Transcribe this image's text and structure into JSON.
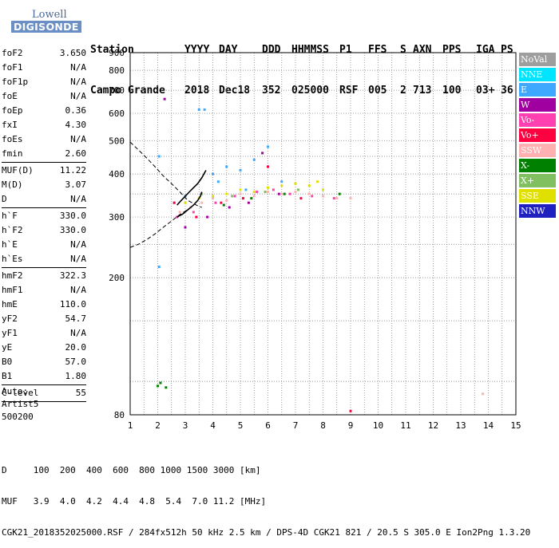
{
  "logo": {
    "line1": "Lowell",
    "line2": "DIGISONDE"
  },
  "header": {
    "labels": [
      "Station",
      "YYYY",
      "DAY",
      "DDD",
      "HHMMSS",
      "P1",
      "FFS",
      "S",
      "AXN",
      "PPS",
      "IGA",
      "PS"
    ],
    "values": [
      "Campo Grande",
      "2018",
      "Dec18",
      "352",
      "025000",
      "RSF",
      "005",
      "2",
      "713",
      "100",
      "03+",
      "36"
    ]
  },
  "params": [
    {
      "k": "foF2",
      "v": "3.650"
    },
    {
      "k": "foF1",
      "v": "N/A"
    },
    {
      "k": "foF1p",
      "v": "N/A"
    },
    {
      "k": "foE",
      "v": "N/A"
    },
    {
      "k": "foEp",
      "v": "0.36"
    },
    {
      "k": "fxI",
      "v": "4.30"
    },
    {
      "k": "foEs",
      "v": "N/A"
    },
    {
      "k": "fmin",
      "v": "2.60"
    },
    {
      "sep": true
    },
    {
      "k": "MUF(D)",
      "v": "11.22"
    },
    {
      "k": "M(D)",
      "v": "3.07"
    },
    {
      "k": "D",
      "v": "N/A"
    },
    {
      "sep": true
    },
    {
      "k": "h`F",
      "v": "330.0"
    },
    {
      "k": "h`F2",
      "v": "330.0"
    },
    {
      "k": "h`E",
      "v": "N/A"
    },
    {
      "k": "h`Es",
      "v": "N/A"
    },
    {
      "sep": true
    },
    {
      "k": "hmF2",
      "v": "322.3"
    },
    {
      "k": "hmF1",
      "v": "N/A"
    },
    {
      "k": "hmE",
      "v": "110.0"
    },
    {
      "k": "yF2",
      "v": "54.7"
    },
    {
      "k": "yF1",
      "v": "N/A"
    },
    {
      "k": "yE",
      "v": "20.0"
    },
    {
      "k": "B0",
      "v": "57.0"
    },
    {
      "k": "B1",
      "v": "1.80"
    },
    {
      "sep": true
    },
    {
      "k": "C-level",
      "v": "55"
    },
    {
      "sep": true
    }
  ],
  "auto": {
    "line1": "Auto:",
    "line2": "Artist5",
    "line3": "500200"
  },
  "legend": [
    {
      "label": "NoVal",
      "bg": "#9e9e9e",
      "fg": "#ffffff"
    },
    {
      "label": "NNE",
      "bg": "#00e5ff",
      "fg": "#ffffff"
    },
    {
      "label": "E",
      "bg": "#3ea8ff",
      "fg": "#ffffff"
    },
    {
      "label": "W",
      "bg": "#a000a0",
      "fg": "#ffffff"
    },
    {
      "label": "Vo-",
      "bg": "#ff40b0",
      "fg": "#ffffff"
    },
    {
      "label": "Vo+",
      "bg": "#ff0040",
      "fg": "#ffffff"
    },
    {
      "label": "SSW",
      "bg": "#ffb0b0",
      "fg": "#ffffff"
    },
    {
      "label": "X-",
      "bg": "#008000",
      "fg": "#ffffff"
    },
    {
      "label": "X+",
      "bg": "#80c060",
      "fg": "#ffffff"
    },
    {
      "label": "SSE",
      "bg": "#e0e000",
      "fg": "#ffffff"
    },
    {
      "label": "NNW",
      "bg": "#2020c0",
      "fg": "#ffffff"
    }
  ],
  "chart_data": {
    "type": "scatter",
    "title": "",
    "xlabel": "",
    "ylabel": "",
    "xlim": [
      1,
      15
    ],
    "ylim": [
      80,
      900
    ],
    "x_ticks": [
      1,
      2,
      3,
      4,
      5,
      6,
      7,
      8,
      9,
      10,
      11,
      12,
      13,
      14,
      15
    ],
    "y_ticks": [
      80,
      200,
      300,
      400,
      500,
      600,
      700,
      800,
      900
    ],
    "grid": true,
    "y_scale": "log",
    "legend_position": "right",
    "series": [
      {
        "color": "#3ea8ff",
        "points": [
          [
            2.05,
            450
          ],
          [
            2.05,
            215
          ],
          [
            3.5,
            615
          ],
          [
            3.7,
            615
          ],
          [
            4.0,
            400
          ],
          [
            4.5,
            420
          ],
          [
            5.0,
            410
          ],
          [
            5.5,
            440
          ],
          [
            6.0,
            480
          ],
          [
            2.6,
            330
          ],
          [
            3.0,
            345
          ],
          [
            4.2,
            380
          ],
          [
            5.2,
            360
          ],
          [
            6.5,
            380
          ]
        ]
      },
      {
        "color": "#ffb0b0",
        "points": [
          [
            2.8,
            310
          ],
          [
            3.2,
            320
          ],
          [
            3.6,
            330
          ],
          [
            4.0,
            340
          ],
          [
            4.5,
            335
          ],
          [
            5.0,
            350
          ],
          [
            5.5,
            345
          ],
          [
            6.0,
            355
          ],
          [
            6.5,
            350
          ],
          [
            7.0,
            355
          ],
          [
            7.5,
            350
          ],
          [
            8.0,
            345
          ],
          [
            8.5,
            340
          ],
          [
            9.0,
            340
          ],
          [
            13.8,
            92
          ]
        ]
      },
      {
        "color": "#e0e000",
        "points": [
          [
            3.0,
            330
          ],
          [
            3.5,
            340
          ],
          [
            4.0,
            345
          ],
          [
            4.5,
            350
          ],
          [
            5.0,
            360
          ],
          [
            5.5,
            355
          ],
          [
            6.0,
            365
          ],
          [
            6.5,
            370
          ],
          [
            7.0,
            375
          ],
          [
            7.5,
            370
          ],
          [
            7.8,
            380
          ],
          [
            8.0,
            360
          ]
        ]
      },
      {
        "color": "#ff40b0",
        "points": [
          [
            2.7,
            300
          ],
          [
            3.3,
            310
          ],
          [
            4.1,
            330
          ],
          [
            4.8,
            345
          ],
          [
            5.6,
            355
          ],
          [
            6.2,
            360
          ],
          [
            6.8,
            350
          ],
          [
            7.6,
            345
          ],
          [
            8.4,
            340
          ]
        ]
      },
      {
        "color": "#a000a0",
        "points": [
          [
            2.25,
            660
          ],
          [
            3.0,
            280
          ],
          [
            3.8,
            300
          ],
          [
            4.6,
            320
          ],
          [
            5.3,
            330
          ],
          [
            5.8,
            460
          ],
          [
            6.4,
            350
          ]
        ]
      },
      {
        "color": "#ff0040",
        "points": [
          [
            2.6,
            330
          ],
          [
            3.4,
            300
          ],
          [
            4.3,
            330
          ],
          [
            5.1,
            340
          ],
          [
            6.0,
            420
          ],
          [
            7.2,
            340
          ],
          [
            9.0,
            82
          ]
        ]
      },
      {
        "color": "#008000",
        "points": [
          [
            2.0,
            97
          ],
          [
            2.1,
            99
          ],
          [
            2.3,
            96
          ],
          [
            4.4,
            325
          ],
          [
            5.4,
            340
          ],
          [
            6.6,
            350
          ],
          [
            8.6,
            350
          ]
        ]
      },
      {
        "color": "#80c060",
        "points": [
          [
            3.6,
            350
          ],
          [
            4.7,
            345
          ],
          [
            5.9,
            355
          ],
          [
            7.1,
            360
          ]
        ]
      }
    ],
    "curves": {
      "trace_upper_x": [
        3.75,
        3.6,
        3.45,
        3.3,
        3.15,
        3.0,
        2.85,
        2.7
      ],
      "trace_upper_y": [
        410,
        390,
        375,
        365,
        355,
        345,
        335,
        325
      ],
      "dashed_upper_x": [
        1.0,
        1.3,
        1.6,
        1.9,
        2.2,
        2.5,
        2.8,
        3.1,
        3.4,
        3.6
      ],
      "dashed_upper_y": [
        495,
        470,
        445,
        420,
        395,
        375,
        355,
        335,
        325,
        320
      ],
      "dashed_lower_x": [
        1.0,
        1.3,
        1.6,
        1.9,
        2.2,
        2.5,
        2.8,
        3.0,
        3.2
      ],
      "dashed_lower_y": [
        245,
        250,
        258,
        268,
        280,
        292,
        305,
        312,
        320
      ],
      "trace_lower_x": [
        2.7,
        2.9,
        3.1,
        3.3,
        3.45,
        3.55,
        3.6
      ],
      "trace_lower_y": [
        300,
        306,
        315,
        325,
        335,
        345,
        355
      ]
    }
  },
  "footer": {
    "line1": "D     100  200  400  600  800 1000 1500 3000 [km]",
    "line2": "MUF   3.9  4.0  4.2  4.4  4.8  5.4  7.0 11.2 [MHz]",
    "line3": "CGK21_2018352025000.RSF / 284fx512h 50 kHz 2.5 km / DPS-4D CGK21 821 / 20.5 S 305.0 E Ion2Png 1.3.20"
  }
}
